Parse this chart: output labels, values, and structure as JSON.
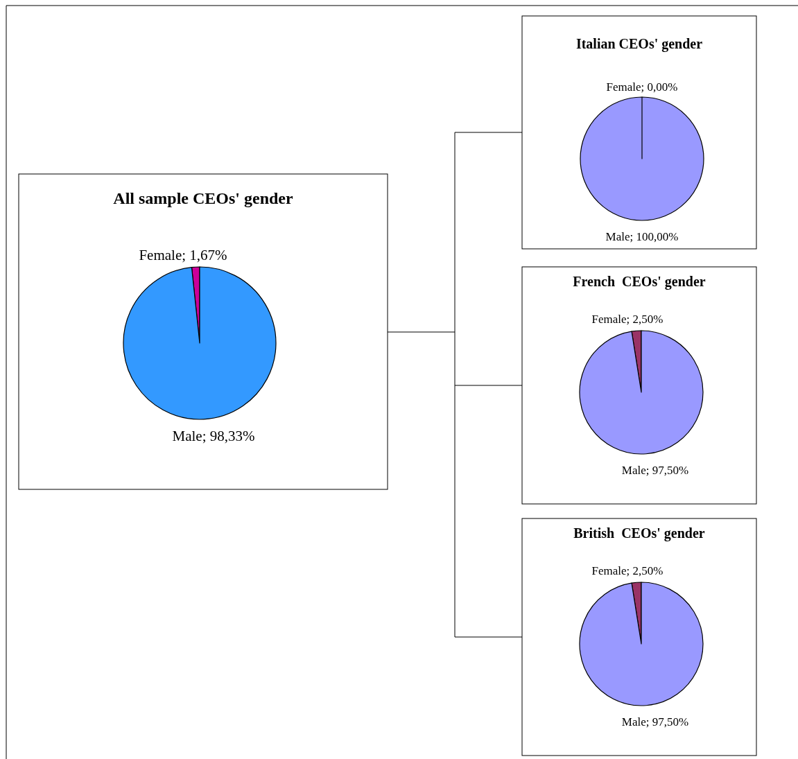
{
  "chart_data": [
    {
      "type": "pie",
      "title": "All sample CEOs' gender",
      "categories": [
        "Female",
        "Male"
      ],
      "values": [
        1.67,
        98.33
      ],
      "colors": [
        "#cc0099",
        "#3399ff"
      ],
      "value_labels": [
        "; 1,67%",
        "; 98,33%"
      ]
    },
    {
      "type": "pie",
      "title": "Italian CEOs' gender",
      "categories": [
        "Female",
        "Male"
      ],
      "values": [
        0,
        100
      ],
      "colors": [
        "#993366",
        "#9999ff"
      ],
      "value_labels": [
        "; 0,00%",
        "; 100,00%"
      ]
    },
    {
      "type": "pie",
      "title": "French  CEOs' gender",
      "categories": [
        "Female",
        "Male"
      ],
      "values": [
        2.5,
        97.5
      ],
      "colors": [
        "#993366",
        "#9999ff"
      ],
      "value_labels": [
        "; 2,50%",
        "; 97,50%"
      ]
    },
    {
      "type": "pie",
      "title": "British  CEOs' gender",
      "categories": [
        "Female",
        "Male"
      ],
      "values": [
        2.5,
        97.5
      ],
      "colors": [
        "#993366",
        "#9999ff"
      ],
      "value_labels": [
        "; 2,50%",
        "; 97,50%"
      ]
    }
  ]
}
